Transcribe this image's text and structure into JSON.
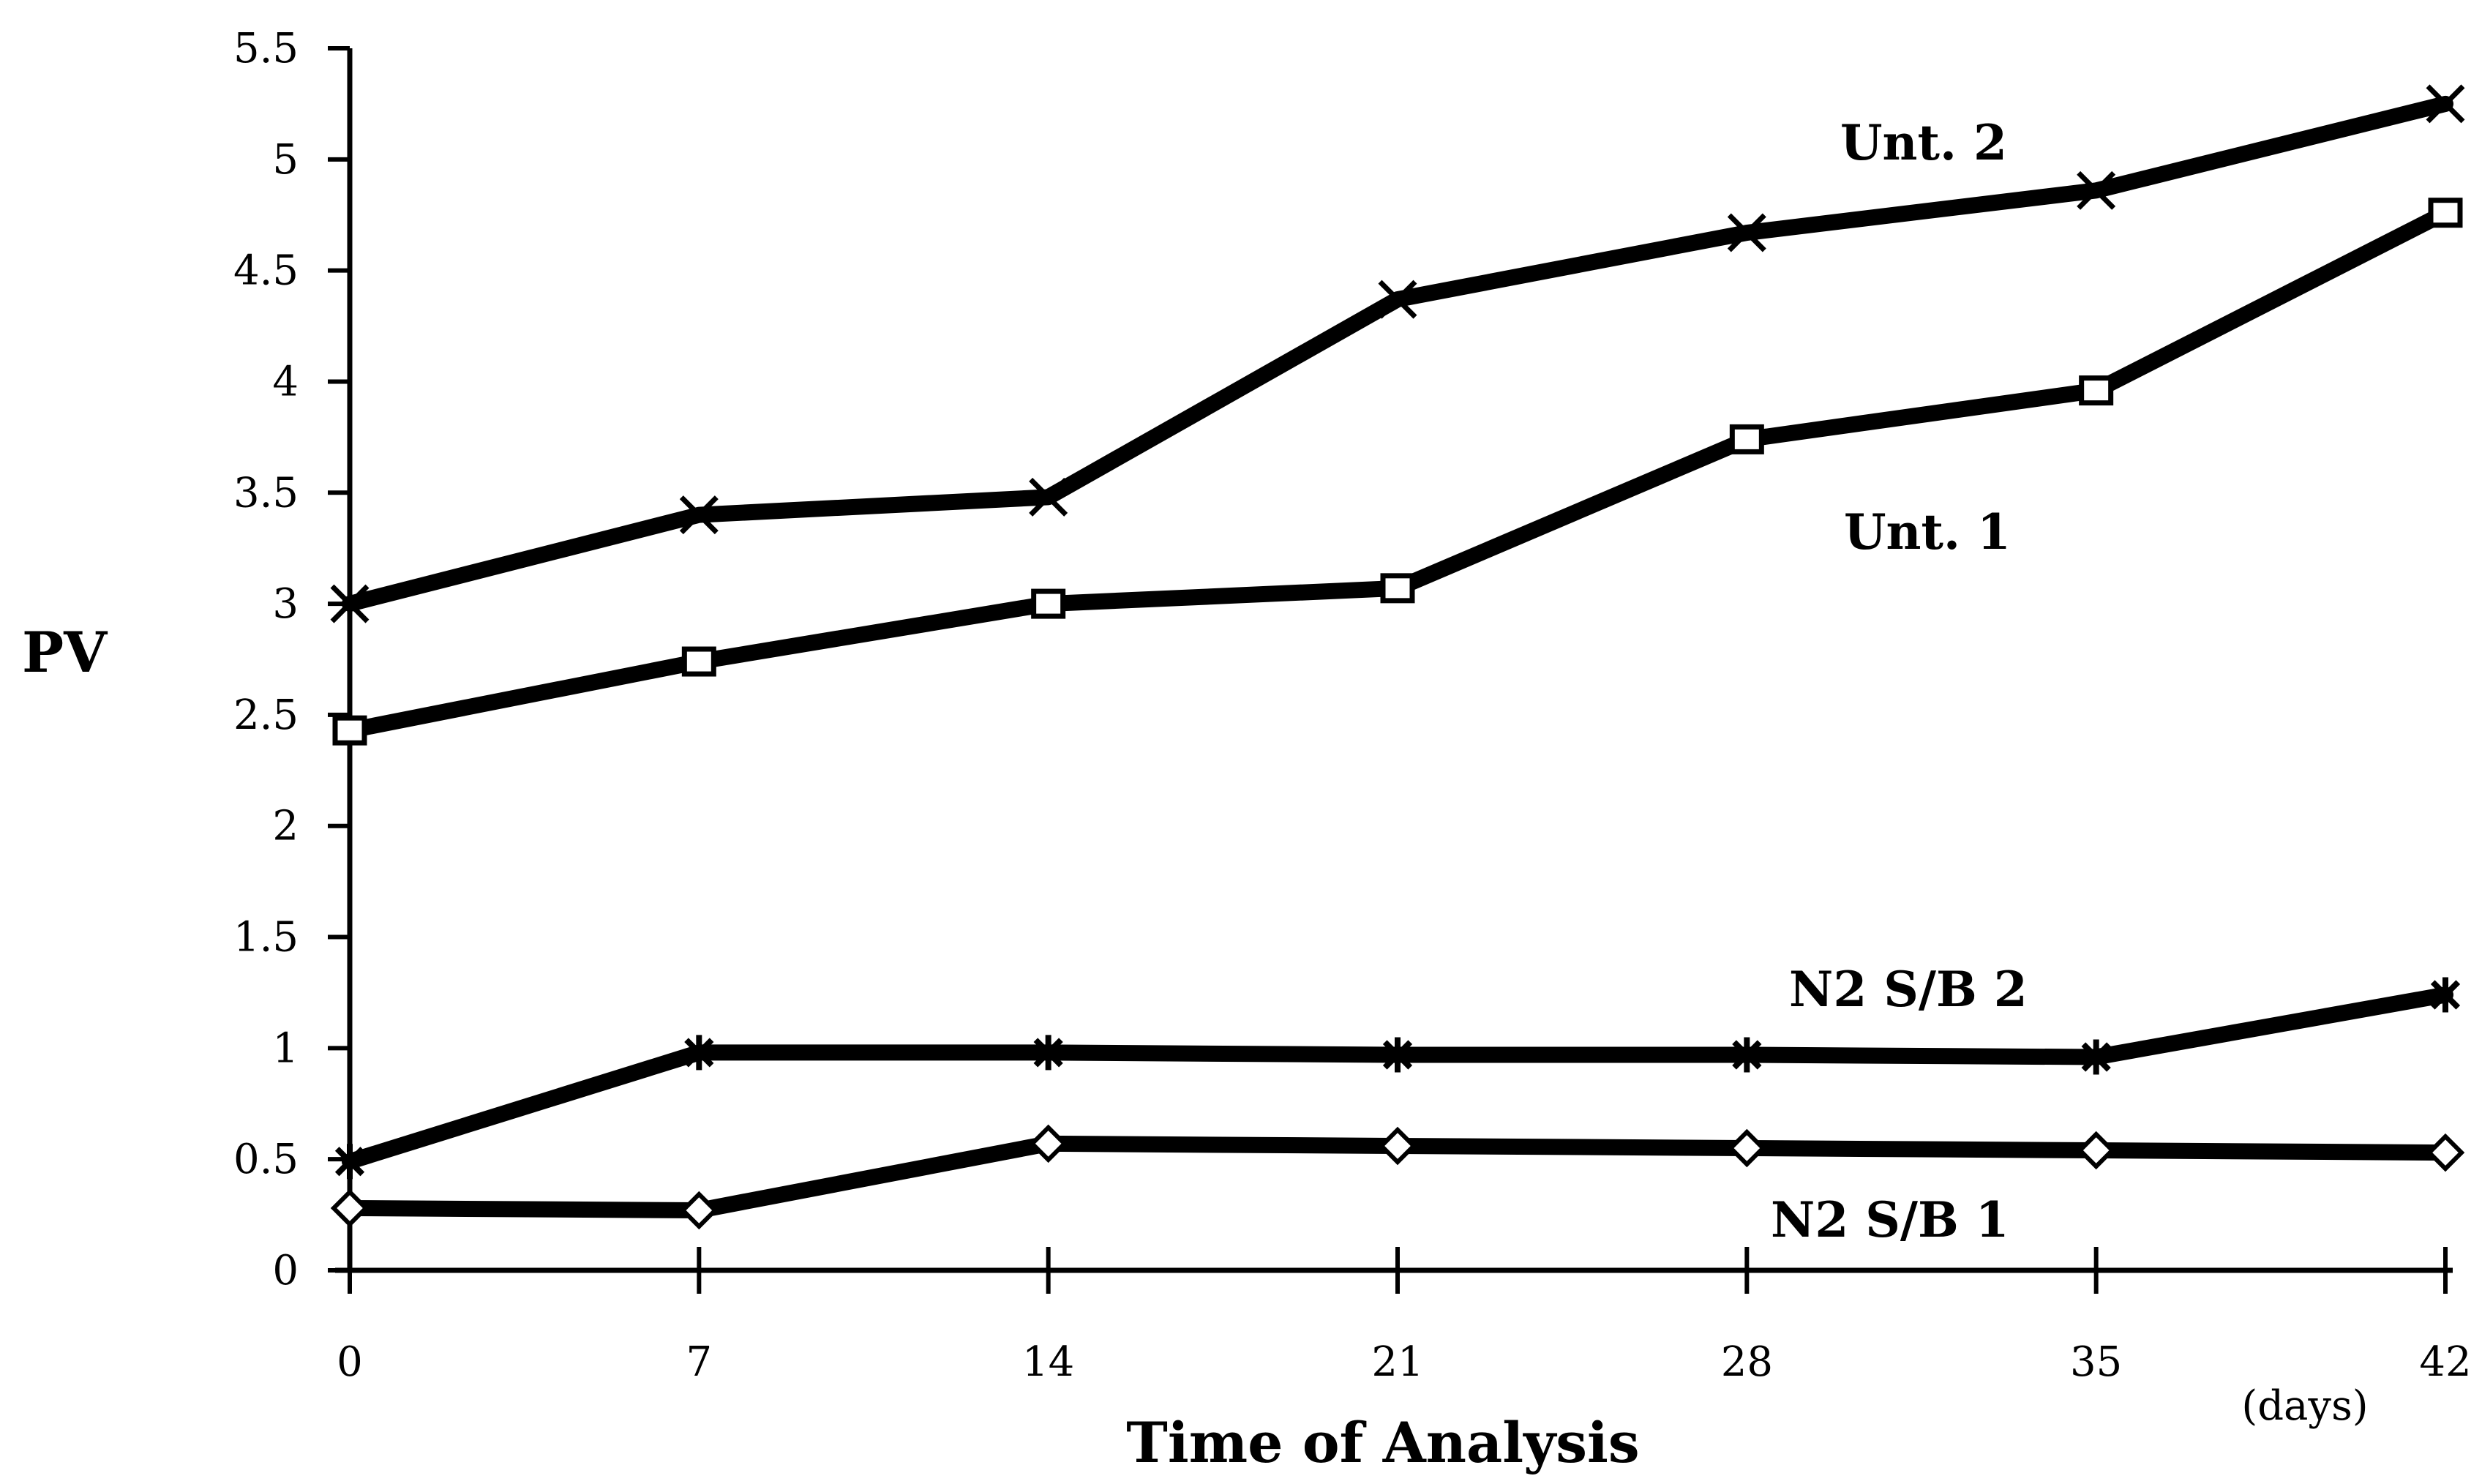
{
  "chart_data": {
    "type": "line",
    "title": "",
    "xlabel": "Time of Analysis",
    "x_unit_label": "(days)",
    "ylabel": "PV",
    "x": [
      0,
      7,
      14,
      21,
      28,
      35,
      42
    ],
    "x_tick_labels": [
      "0",
      "7",
      "14",
      "21",
      "28",
      "35",
      "42"
    ],
    "y_tick_labels": [
      "0",
      "0.5",
      "1",
      "1.5",
      "2",
      "2.5",
      "3",
      "3.5",
      "4",
      "4.5",
      "5",
      "5.5"
    ],
    "xlim": [
      0,
      42
    ],
    "ylim": [
      0,
      5.5
    ],
    "grid": false,
    "legend": "none (series labeled directly on the plot)",
    "series": [
      {
        "name": "Unt. 2",
        "marker": "x",
        "values": [
          3.0,
          3.4,
          3.48,
          4.37,
          4.67,
          4.86,
          5.25
        ]
      },
      {
        "name": "Unt. 1",
        "marker": "square",
        "values": [
          2.43,
          2.74,
          3.0,
          3.07,
          3.74,
          3.96,
          4.76
        ]
      },
      {
        "name": "N2 S/B 2",
        "marker": "asterisk",
        "values": [
          0.49,
          0.98,
          0.98,
          0.97,
          0.97,
          0.96,
          1.24
        ]
      },
      {
        "name": "N2 S/B 1",
        "marker": "diamond",
        "values": [
          0.28,
          0.27,
          0.57,
          0.56,
          0.55,
          0.54,
          0.53
        ]
      }
    ],
    "colors": {
      "line": "#000000",
      "marker_fill": "#ffffff",
      "background": "#ffffff"
    }
  }
}
